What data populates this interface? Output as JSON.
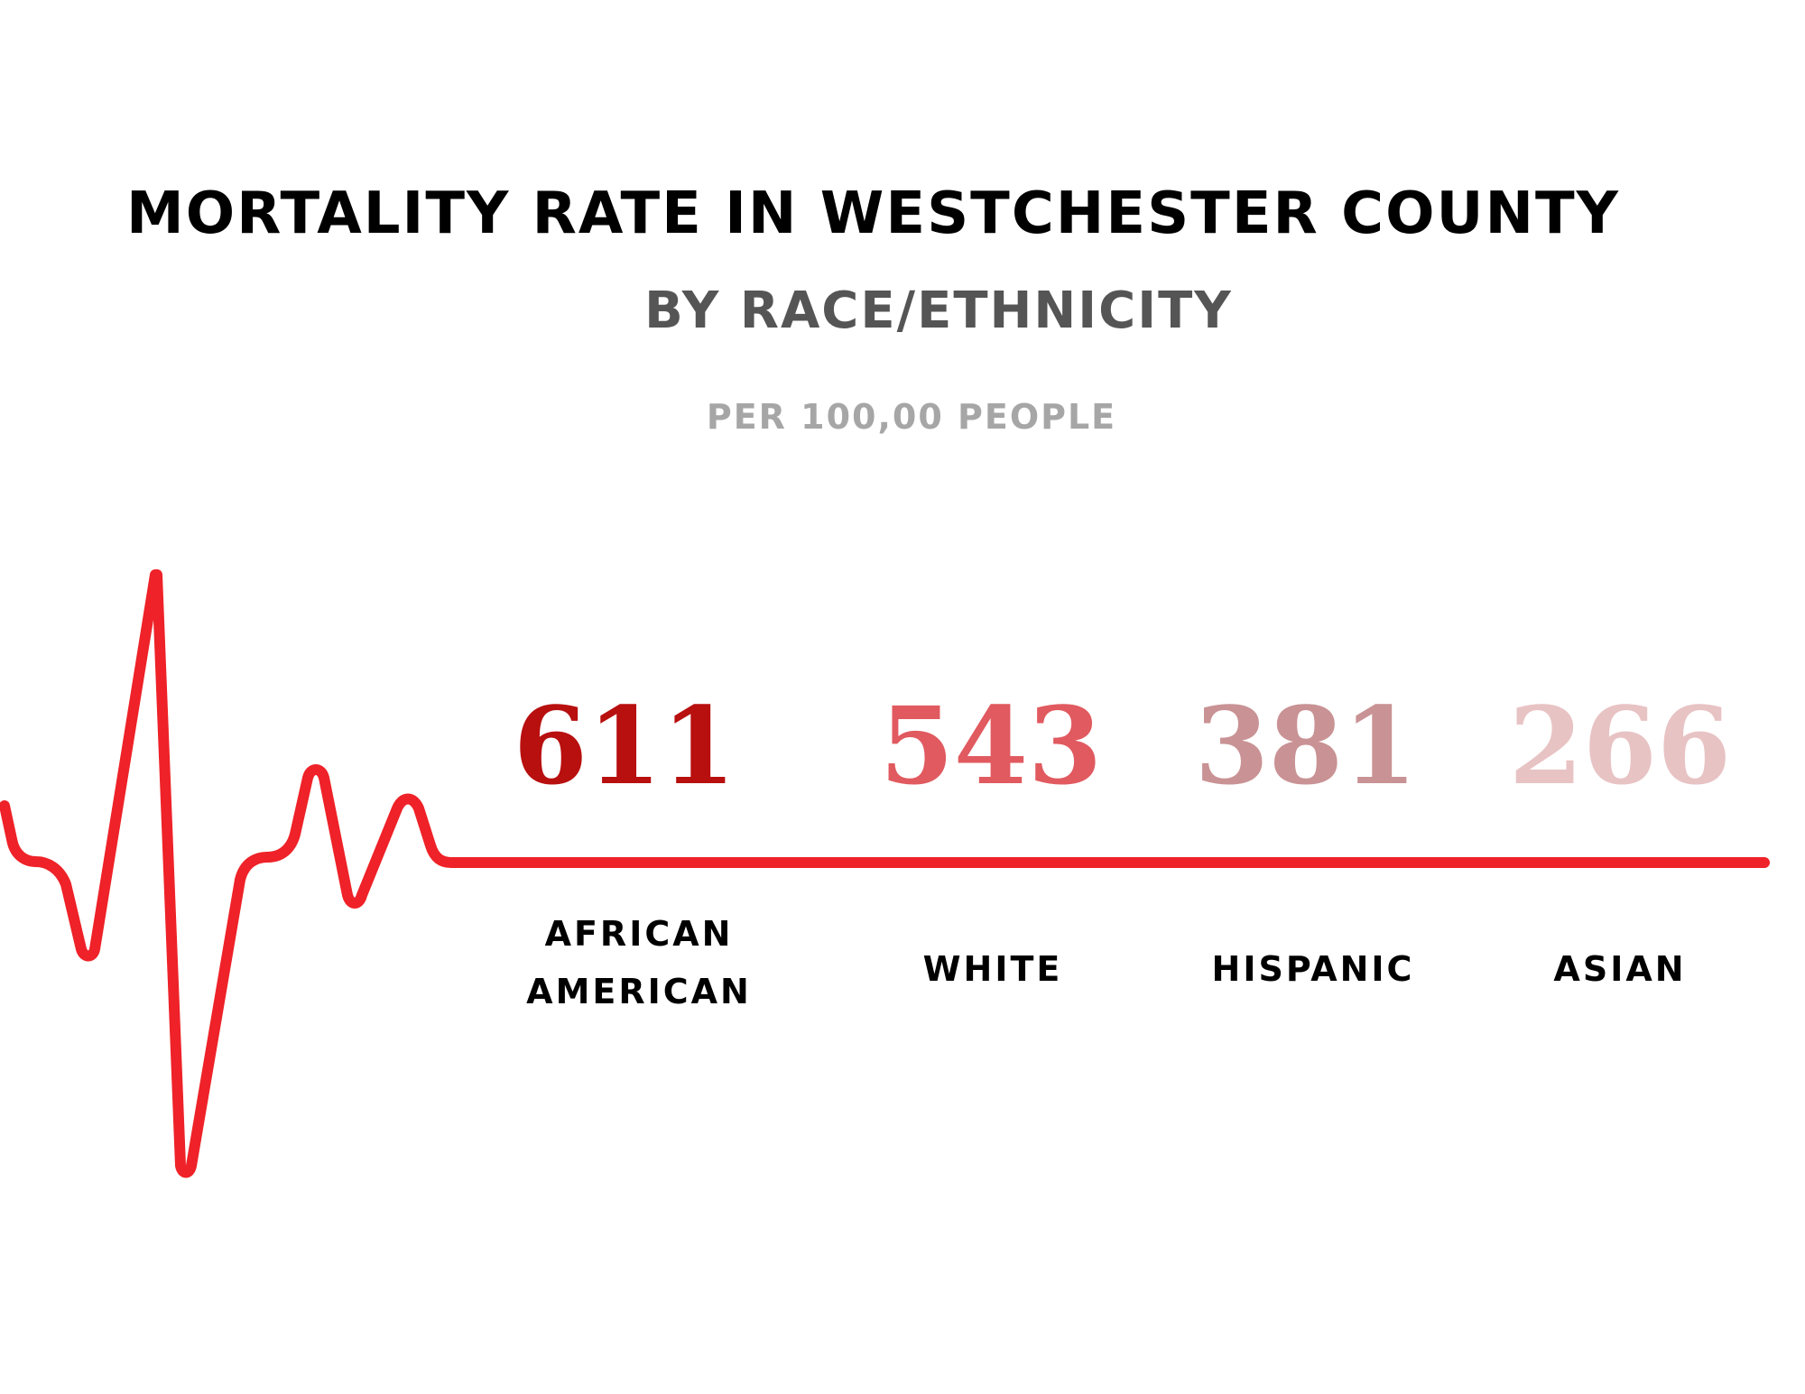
{
  "chart_data": {
    "type": "bar",
    "title": "MORTALITY RATE IN WESTCHESTER COUNTY",
    "subtitle": "BY RACE/ETHNICITY",
    "unit_note": "PER 100,00 PEOPLE",
    "categories": [
      "AFRICAN AMERICAN",
      "WHITE",
      "HISPANIC",
      "ASIAN"
    ],
    "values": [
      611,
      543,
      381,
      266
    ],
    "value_colors": [
      "#b80f0f",
      "#e05a5f",
      "#c99294",
      "#e8c3c4"
    ],
    "line_color": "#ee2228"
  }
}
